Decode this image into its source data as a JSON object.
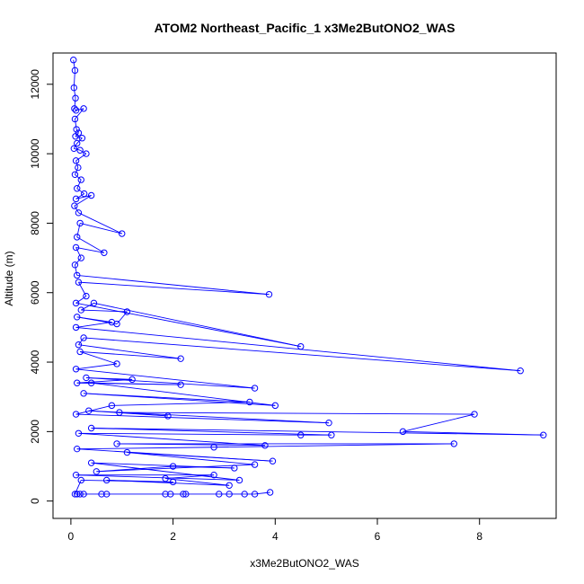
{
  "chart_data": {
    "type": "scatter",
    "title": "ATOM2 Northeast_Pacific_1 x3Me2ButONO2_WAS",
    "xlabel": "x3Me2ButONO2_WAS",
    "ylabel": "Altitude (m)",
    "xlim": [
      -0.35,
      9.5
    ],
    "ylim": [
      -500,
      12900
    ],
    "xticks": [
      0,
      2,
      4,
      6,
      8
    ],
    "yticks": [
      0,
      2000,
      4000,
      6000,
      8000,
      10000,
      12000
    ],
    "color": "#0000ff",
    "connect_points": true,
    "grid": false,
    "series": [
      {
        "points": [
          [
            0.05,
            12700
          ],
          [
            0.08,
            12400
          ],
          [
            0.06,
            11900
          ],
          [
            0.09,
            11600
          ],
          [
            0.07,
            11300
          ],
          [
            0.1,
            11250
          ],
          [
            0.25,
            11300
          ],
          [
            0.08,
            11000
          ],
          [
            0.11,
            10700
          ],
          [
            0.15,
            10600
          ],
          [
            0.09,
            10500
          ],
          [
            0.22,
            10450
          ],
          [
            0.12,
            10300
          ],
          [
            0.06,
            10150
          ],
          [
            0.18,
            10100
          ],
          [
            0.3,
            10000
          ],
          [
            0.1,
            9800
          ],
          [
            0.14,
            9600
          ],
          [
            0.08,
            9400
          ],
          [
            0.2,
            9250
          ],
          [
            0.12,
            9000
          ],
          [
            0.26,
            8850
          ],
          [
            0.1,
            8700
          ],
          [
            0.4,
            8800
          ],
          [
            0.07,
            8500
          ],
          [
            0.15,
            8300
          ],
          [
            1.0,
            7700
          ],
          [
            0.18,
            8000
          ],
          [
            0.12,
            7600
          ],
          [
            0.65,
            7150
          ],
          [
            0.1,
            7300
          ],
          [
            0.2,
            7000
          ],
          [
            0.08,
            6800
          ],
          [
            0.12,
            6500
          ],
          [
            3.88,
            5950
          ],
          [
            0.15,
            6300
          ],
          [
            0.3,
            5900
          ],
          [
            0.1,
            5700
          ],
          [
            4.5,
            4450
          ],
          [
            0.45,
            5700
          ],
          [
            0.2,
            5500
          ],
          [
            1.1,
            5450
          ],
          [
            0.9,
            5100
          ],
          [
            0.12,
            5300
          ],
          [
            0.8,
            5150
          ],
          [
            0.1,
            5000
          ],
          [
            8.8,
            3750
          ],
          [
            0.25,
            4700
          ],
          [
            0.15,
            4500
          ],
          [
            2.15,
            4100
          ],
          [
            0.18,
            4300
          ],
          [
            0.9,
            3950
          ],
          [
            0.1,
            3800
          ],
          [
            3.6,
            3250
          ],
          [
            0.3,
            3550
          ],
          [
            1.2,
            3500
          ],
          [
            0.12,
            3400
          ],
          [
            2.15,
            3350
          ],
          [
            0.4,
            3400
          ],
          [
            4.0,
            2750
          ],
          [
            0.25,
            3100
          ],
          [
            3.5,
            2850
          ],
          [
            0.8,
            2750
          ],
          [
            0.1,
            2500
          ],
          [
            5.05,
            2250
          ],
          [
            0.35,
            2600
          ],
          [
            1.9,
            2450
          ],
          [
            0.95,
            2550
          ],
          [
            7.9,
            2500
          ],
          [
            6.5,
            2000
          ],
          [
            9.25,
            1900
          ],
          [
            0.4,
            2100
          ],
          [
            5.1,
            1900
          ],
          [
            4.5,
            1900
          ],
          [
            0.15,
            1950
          ],
          [
            3.8,
            1600
          ],
          [
            0.9,
            1650
          ],
          [
            7.5,
            1650
          ],
          [
            2.8,
            1550
          ],
          [
            0.12,
            1500
          ],
          [
            3.95,
            1150
          ],
          [
            1.1,
            1400
          ],
          [
            3.6,
            1050
          ],
          [
            0.5,
            850
          ],
          [
            2.0,
            1000
          ],
          [
            3.2,
            950
          ],
          [
            0.4,
            1100
          ],
          [
            3.3,
            600
          ],
          [
            0.1,
            750
          ],
          [
            2.8,
            750
          ],
          [
            1.85,
            650
          ],
          [
            3.1,
            450
          ],
          [
            0.7,
            600
          ],
          [
            2.0,
            550
          ],
          [
            0.2,
            600
          ],
          [
            0.08,
            200
          ],
          [
            0.12,
            200
          ],
          [
            0.18,
            200
          ],
          [
            0.25,
            200
          ],
          [
            0.6,
            200
          ],
          [
            0.7,
            200
          ],
          [
            1.85,
            200
          ],
          [
            1.95,
            200
          ],
          [
            2.2,
            200
          ],
          [
            2.25,
            200
          ],
          [
            2.9,
            200
          ],
          [
            3.1,
            200
          ],
          [
            3.4,
            200
          ],
          [
            3.6,
            200
          ],
          [
            3.9,
            250
          ]
        ]
      }
    ]
  }
}
